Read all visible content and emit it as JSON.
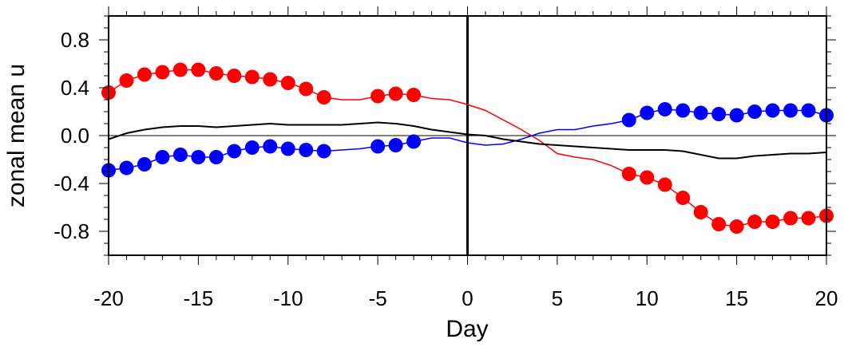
{
  "chart_data": {
    "type": "line",
    "xlabel": "Day",
    "ylabel": "zonal mean u",
    "xlim": [
      -20,
      20
    ],
    "ylim": [
      -1.0,
      1.0
    ],
    "xticks": [
      -20,
      -15,
      -10,
      -5,
      0,
      5,
      10,
      15,
      20
    ],
    "xtick_labels": [
      "-20",
      "-15",
      "-10",
      "-5",
      "0",
      "5",
      "10",
      "15",
      "20"
    ],
    "yticks": [
      -0.8,
      -0.4,
      0.0,
      0.4,
      0.8
    ],
    "ytick_labels": [
      "-0.8",
      "-0.4",
      "0.0",
      "0.4",
      "0.8"
    ],
    "x": [
      -20,
      -19,
      -18,
      -17,
      -16,
      -15,
      -14,
      -13,
      -12,
      -11,
      -10,
      -9,
      -8,
      -7,
      -6,
      -5,
      -4,
      -3,
      -2,
      -1,
      0,
      1,
      2,
      3,
      4,
      5,
      6,
      7,
      8,
      9,
      10,
      11,
      12,
      13,
      14,
      15,
      16,
      17,
      18,
      19,
      20
    ],
    "series": [
      {
        "color": "#ff0000",
        "values": [
          0.36,
          0.46,
          0.51,
          0.53,
          0.55,
          0.55,
          0.52,
          0.5,
          0.49,
          0.47,
          0.44,
          0.39,
          0.32,
          0.3,
          0.3,
          0.33,
          0.35,
          0.34,
          0.31,
          0.3,
          0.26,
          0.21,
          0.13,
          0.05,
          -0.04,
          -0.15,
          -0.18,
          -0.2,
          -0.25,
          -0.32,
          -0.35,
          -0.41,
          -0.52,
          -0.64,
          -0.74,
          -0.76,
          -0.72,
          -0.72,
          -0.69,
          -0.69,
          -0.67
        ],
        "marked": [
          true,
          true,
          true,
          true,
          true,
          true,
          true,
          true,
          true,
          true,
          true,
          true,
          true,
          false,
          false,
          true,
          true,
          true,
          false,
          false,
          false,
          false,
          false,
          false,
          false,
          false,
          false,
          false,
          false,
          true,
          true,
          true,
          true,
          true,
          true,
          true,
          true,
          true,
          true,
          true,
          true
        ]
      },
      {
        "color": "#0000ff",
        "values": [
          -0.29,
          -0.27,
          -0.24,
          -0.18,
          -0.16,
          -0.18,
          -0.18,
          -0.13,
          -0.1,
          -0.09,
          -0.11,
          -0.12,
          -0.13,
          -0.12,
          -0.11,
          -0.09,
          -0.08,
          -0.05,
          -0.02,
          -0.02,
          -0.06,
          -0.08,
          -0.07,
          -0.03,
          0.02,
          0.05,
          0.05,
          0.08,
          0.1,
          0.13,
          0.19,
          0.22,
          0.21,
          0.19,
          0.18,
          0.17,
          0.2,
          0.21,
          0.21,
          0.21,
          0.17
        ],
        "marked": [
          true,
          true,
          true,
          true,
          true,
          true,
          true,
          true,
          true,
          true,
          true,
          true,
          true,
          false,
          false,
          true,
          true,
          true,
          false,
          false,
          false,
          false,
          false,
          false,
          false,
          false,
          false,
          false,
          false,
          true,
          true,
          true,
          true,
          true,
          true,
          true,
          true,
          true,
          true,
          true,
          true
        ]
      },
      {
        "color": "#000000",
        "values": [
          -0.03,
          0.02,
          0.05,
          0.07,
          0.08,
          0.08,
          0.07,
          0.08,
          0.09,
          0.1,
          0.09,
          0.09,
          0.09,
          0.09,
          0.1,
          0.11,
          0.1,
          0.08,
          0.05,
          0.03,
          0.01,
          0.0,
          -0.03,
          -0.05,
          -0.07,
          -0.08,
          -0.09,
          -0.1,
          -0.11,
          -0.12,
          -0.12,
          -0.12,
          -0.13,
          -0.16,
          -0.19,
          -0.19,
          -0.17,
          -0.16,
          -0.15,
          -0.15,
          -0.14
        ],
        "marked": []
      }
    ],
    "zero_line": true,
    "vertical_line_x": 0,
    "grid": false
  }
}
